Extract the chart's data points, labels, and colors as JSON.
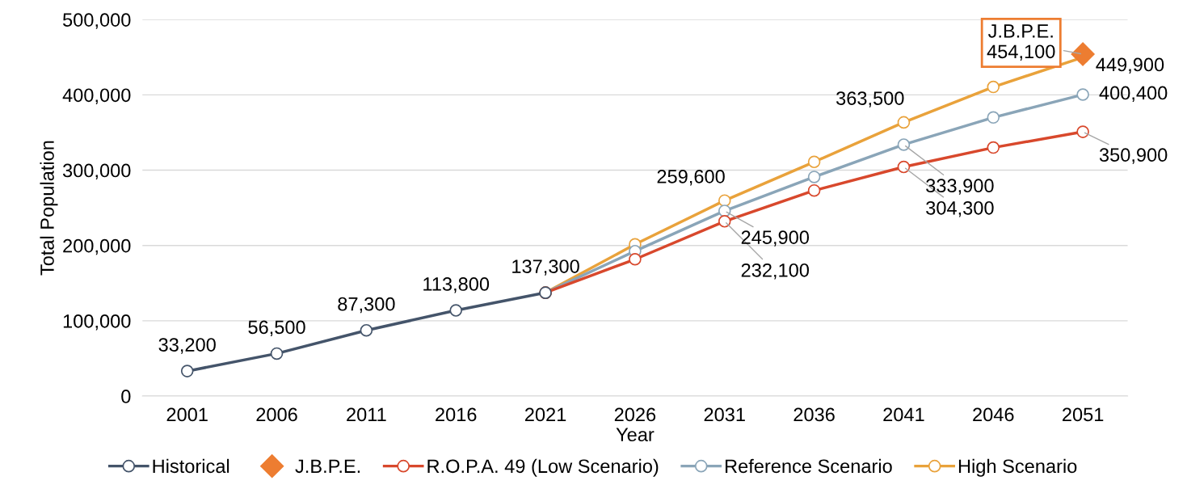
{
  "chart_data": {
    "type": "line",
    "xlabel": "Year",
    "ylabel": "Total Population",
    "categories": [
      "2001",
      "2006",
      "2011",
      "2016",
      "2021",
      "2026",
      "2031",
      "2036",
      "2041",
      "2046",
      "2051"
    ],
    "series": [
      {
        "name": "Historical",
        "color": "#44546a",
        "marker": "circle",
        "values": [
          33200,
          56500,
          87300,
          113800,
          137300,
          null,
          null,
          null,
          null,
          null,
          null
        ],
        "value_labels": [
          "33,200",
          "56,500",
          "87,300",
          "113,800",
          "137,300",
          null,
          null,
          null,
          null,
          null,
          null
        ]
      },
      {
        "name": "J.B.P.E.",
        "color": "#ed7d31",
        "marker": "diamond",
        "values": [
          null,
          null,
          null,
          null,
          null,
          null,
          null,
          null,
          null,
          null,
          454100
        ],
        "value_labels": [
          null,
          null,
          null,
          null,
          null,
          null,
          null,
          null,
          null,
          null,
          "J.B.P.E.\n454,100"
        ]
      },
      {
        "name": "R.O.P.A. 49 (Low Scenario)",
        "color": "#d8482c",
        "marker": "circle",
        "values": [
          null,
          null,
          null,
          null,
          137300,
          181700,
          232100,
          273000,
          304300,
          330000,
          350900
        ],
        "value_labels": [
          null,
          null,
          null,
          null,
          null,
          null,
          "232,100",
          null,
          "304,300",
          null,
          "350,900"
        ]
      },
      {
        "name": "Reference Scenario",
        "color": "#8aa5b8",
        "marker": "circle",
        "values": [
          null,
          null,
          null,
          null,
          137300,
          192500,
          245900,
          291000,
          333900,
          370000,
          400400
        ],
        "value_labels": [
          null,
          null,
          null,
          null,
          null,
          null,
          "245,900",
          null,
          "333,900",
          null,
          "400,400"
        ]
      },
      {
        "name": "High Scenario",
        "color": "#e9a23b",
        "marker": "circle",
        "values": [
          null,
          null,
          null,
          null,
          137300,
          201500,
          259600,
          311000,
          363500,
          410500,
          449900
        ],
        "value_labels": [
          null,
          null,
          null,
          null,
          null,
          null,
          "259,600",
          null,
          "363,500",
          null,
          "449,900"
        ]
      }
    ],
    "ylim": [
      0,
      500000
    ],
    "yticks": [
      0,
      {
        "value": 100000,
        "label": "100,000"
      },
      {
        "value": 200000,
        "label": "200,000"
      },
      {
        "value": 300000,
        "label": "300,000"
      },
      {
        "value": 400000,
        "label": "400,000"
      },
      {
        "value": 500000,
        "label": "500,000"
      }
    ],
    "grid": "y",
    "legend": "bottom"
  }
}
